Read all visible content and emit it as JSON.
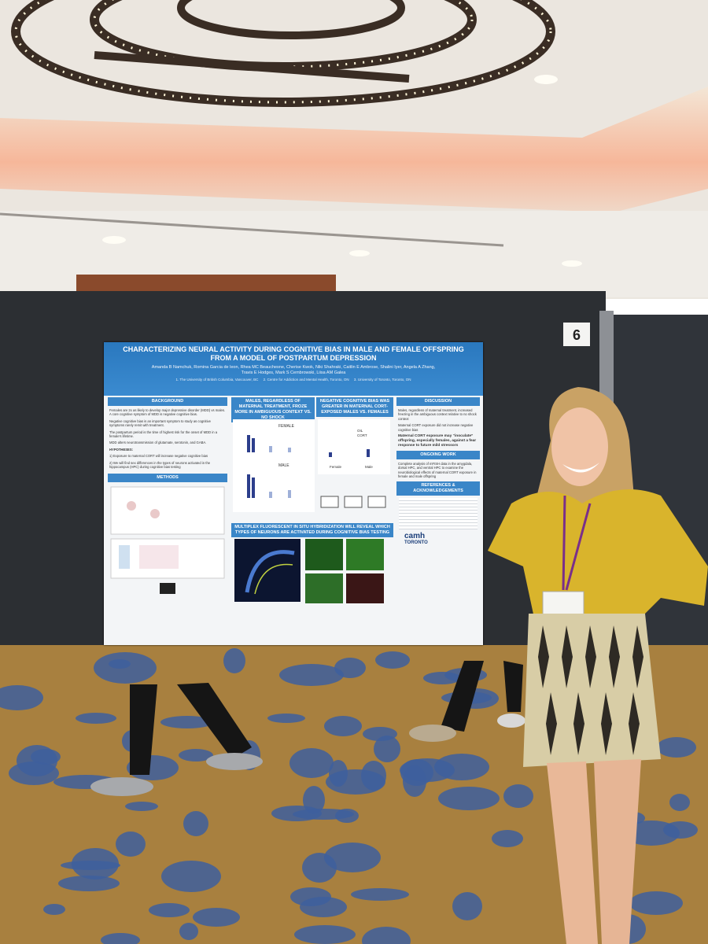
{
  "scene": {
    "booth_number": "6"
  },
  "poster": {
    "title": "CHARACTERIZING NEURAL ACTIVITY DURING COGNITIVE BIAS IN MALE AND FEMALE OFFSPRING FROM A MODEL OF POSTPARTUM DEPRESSION",
    "authors": "Amanda B Namchuk, Romina Garcia de leon, Rhea MC Beauchesne, Cherise Kwok, Niki Shahraki, Caitlin E Ambrose, Shalini Iyer, Angela A Zhang, Travis E Hodges, Mark S Cembrowski, Liisa AM Galea",
    "affiliations": "1. The University of British Columbia, Vancouver, BC     2. Centre for Addiction and Mental Health, Toronto, ON     3. University of Toronto, Toronto, ON",
    "background": {
      "heading": "BACKGROUND",
      "paragraphs": [
        "Females are 2x as likely to develop major depressive disorder (MDD) vs males. A core cognitive symptom of MDD is negative cognitive bias.",
        "Negative cognitive bias is an important symptom to study as cognitive symptoms rarely remit with treatment.",
        "The postpartum period is the time of highest risk for the onset of MDD in a female's lifetime.",
        "MDD alters neurotransmission of glutamate, serotonin, and GABA."
      ],
      "hypotheses_heading": "HYPOTHESES:",
      "hypotheses": [
        "1) Exposure to maternal CORT will increase negative cognitive bias",
        "2) We will find sex differences in the types of neurons activated in the hippocampus (HPC) during cognitive bias testing"
      ]
    },
    "methods": {
      "heading": "METHODS"
    },
    "result1": {
      "heading": "MALES, REGARDLESS OF MATERNAL TREATMENT, FROZE MORE IN AMBIGUOUS CONTEXT VS. NO SHOCK",
      "panel_a": "FEMALE",
      "panel_b": "MALE"
    },
    "result2": {
      "heading": "NEGATIVE COGNITIVE BIAS WAS GREATER IN MATERNAL CORT-EXPOSED MALES VS. FEMALES",
      "legend": [
        "OIL",
        "CORT"
      ],
      "groups": [
        "Female",
        "Male"
      ]
    },
    "result3": {
      "heading": "MULTIPLEX FLUORESCENT IN SITU HYBRIDIZATION WILL REVEAL WHICH TYPES OF NEURONS ARE ACTIVATED DURING COGNITIVE BIAS TESTING"
    },
    "discussion": {
      "heading": "DISCUSSION",
      "points": [
        "Males, regardless of maternal treatment, increased freezing in the ambiguous context relative to no shock context",
        "Maternal CORT exposure did not increase negative cognitive bias"
      ],
      "conclusion": "Maternal CORT exposure may “inoculate” offspring, especially females, against a fear response to future mild stressors"
    },
    "ongoing": {
      "heading": "ONGOING WORK",
      "points": [
        "Complete analysis of mFISH data in the amygdala, dorsal HPC, and ventral HPC to examine the neurobiological effects of maternal CORT exposure in female and male offspring"
      ]
    },
    "references": {
      "heading": "REFERENCES & ACKNOWLEDGEMENTS"
    },
    "logos": [
      "camh",
      "TORONTO"
    ]
  }
}
